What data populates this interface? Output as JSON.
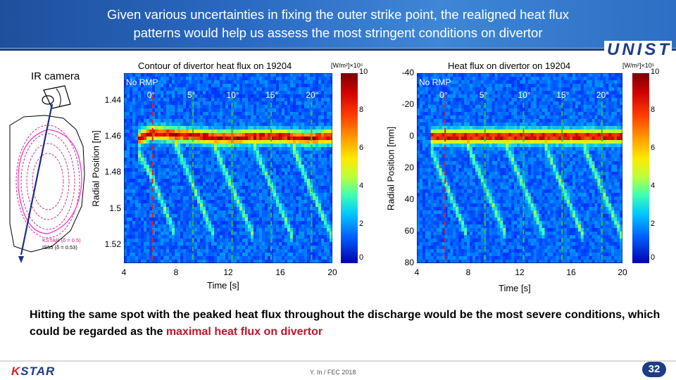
{
  "slide": {
    "title_line1": "Given various uncertainties in fixing the outer strike point, the realigned heat flux",
    "title_line2": "patterns would help us assess the most stringent conditions on divertor",
    "logo_unist": "UNIST",
    "ir_label": "IR camera",
    "diagram_label1": "KSTAR (δ = 0.5)",
    "diagram_label2": "IS55 (δ = 0.53)",
    "note_text": "Hitting the same spot with the peaked heat flux throughout the discharge would be the most severe conditions, which could be regarded as the ",
    "note_highlight": "maximal heat flux on divertor",
    "footer_credit": "Y. In / FEC 2018",
    "page_number": "32",
    "logo_kstar_k": "K",
    "logo_kstar_rest": "STAR"
  },
  "colors": {
    "header_blue": "#2a69c2",
    "highlight_red": "#c0152a",
    "marker_green": "#3fb83f",
    "marker_red": "#e02020"
  },
  "chart_data": [
    {
      "type": "heatmap",
      "title": "Contour of divertor heat flux on 19204",
      "xlabel": "Time [s]",
      "ylabel": "Radial Position [m]",
      "x_ticks": [
        "4",
        "8",
        "12",
        "16",
        "20"
      ],
      "y_ticks": [
        "1.44",
        "1.46",
        "1.48",
        "1.5",
        "1.52"
      ],
      "xlim": [
        4,
        20
      ],
      "ylim": [
        1.425,
        1.53
      ],
      "colorbar_label": "[W/m²]×10⁵",
      "colorbar_ticks": [
        "10",
        "8",
        "6",
        "4",
        "2",
        "0"
      ],
      "colorbar_range": [
        0,
        10
      ],
      "overlay_text": "No RMP",
      "phase_labels": [
        "0°",
        "5°",
        "10°",
        "15°",
        "20°"
      ],
      "phase_marker_times": [
        6.2,
        9.3,
        12.3,
        15.3,
        18.4
      ],
      "strike_trace": {
        "x": [
          5,
          6,
          8,
          10,
          12,
          14,
          16,
          18,
          20
        ],
        "y": [
          1.462,
          1.458,
          1.459,
          1.46,
          1.461,
          1.46,
          1.46,
          1.461,
          1.46
        ]
      }
    },
    {
      "type": "heatmap",
      "title": "Heat flux on divertor on 19204",
      "xlabel": "Time [s]",
      "ylabel": "Radial Position [mm]",
      "x_ticks": [
        "4",
        "8",
        "12",
        "16",
        "20"
      ],
      "y_ticks": [
        "-40",
        "-20",
        "0",
        "20",
        "40",
        "60",
        "80"
      ],
      "xlim": [
        4,
        20
      ],
      "ylim": [
        -40,
        80
      ],
      "colorbar_label": "[W/m²]×10⁵",
      "colorbar_ticks": [
        "10",
        "8",
        "6",
        "4",
        "2",
        "0"
      ],
      "colorbar_range": [
        0,
        10
      ],
      "overlay_text": "No RMP",
      "phase_labels": [
        "0°",
        "5°",
        "10°",
        "15°",
        "20°"
      ],
      "phase_marker_times": [
        6.2,
        9.3,
        12.3,
        15.3,
        18.4
      ],
      "strike_trace": {
        "x": [
          5,
          6,
          8,
          10,
          12,
          14,
          16,
          18,
          20
        ],
        "y": [
          0,
          0,
          0,
          0,
          0,
          0,
          0,
          0,
          0
        ]
      }
    }
  ]
}
